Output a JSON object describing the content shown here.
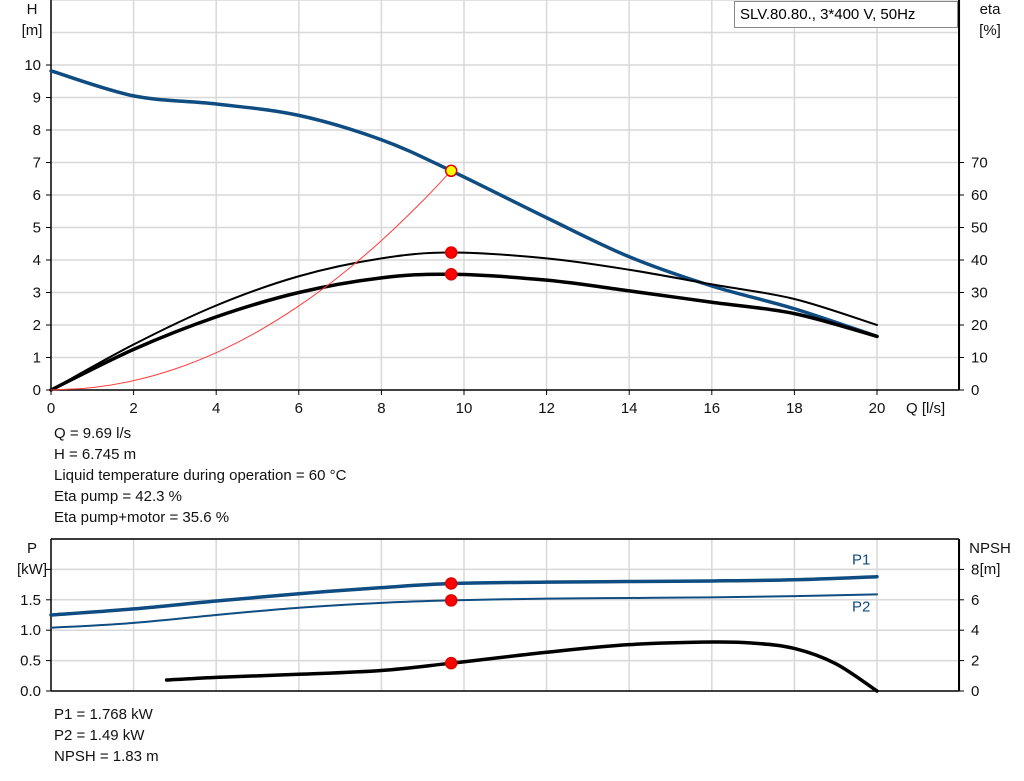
{
  "chart_data": [
    {
      "type": "line",
      "title_box": "SLV.80.80., 3*400 V, 50Hz",
      "xlabel": "Q [l/s]",
      "ylabel_left": [
        "H",
        "[m]"
      ],
      "ylabel_right": [
        "eta",
        "[%]"
      ],
      "xlim": [
        0,
        22
      ],
      "ylim_left": [
        0,
        12
      ],
      "ylim_right": [
        0,
        120
      ],
      "x_ticks": [
        0,
        2,
        4,
        6,
        8,
        10,
        12,
        14,
        16,
        18,
        20
      ],
      "y_ticks_left": [
        0,
        1,
        2,
        3,
        4,
        5,
        6,
        7,
        8,
        9,
        10
      ],
      "y_ticks_right": [
        0,
        10,
        20,
        30,
        40,
        50,
        60,
        70
      ],
      "grid": true,
      "series": [
        {
          "axis": "left",
          "color": "#0f4c81",
          "width": 3.5,
          "x": [
            0,
            2,
            4,
            6,
            8,
            9.69,
            12,
            14,
            16,
            18,
            20
          ],
          "y": [
            9.82,
            9.05,
            8.8,
            8.45,
            7.7,
            6.745,
            5.3,
            4.1,
            3.2,
            2.5,
            1.65
          ]
        },
        {
          "axis": "right",
          "color": "#000000",
          "width": 2,
          "x": [
            0,
            2,
            4,
            6,
            8,
            9.69,
            12,
            14,
            16,
            18,
            20
          ],
          "y": [
            0,
            14,
            26,
            35,
            40.5,
            42.3,
            40.5,
            37,
            32.5,
            28,
            20
          ]
        },
        {
          "axis": "right",
          "color": "#000000",
          "width": 3.5,
          "x": [
            0,
            2,
            4,
            6,
            8,
            9.69,
            12,
            14,
            16,
            18,
            20
          ],
          "y": [
            0,
            12.5,
            22.5,
            30,
            34.5,
            35.6,
            33.8,
            30.5,
            27,
            23.5,
            16.5
          ]
        },
        {
          "axis": "left",
          "color": "#ff3b3b",
          "width": 1,
          "x": [
            0,
            1,
            2,
            3,
            4,
            5,
            6,
            7,
            8,
            9,
            9.69
          ],
          "y": [
            0,
            0.072,
            0.287,
            0.646,
            1.149,
            1.796,
            2.586,
            3.52,
            4.597,
            5.818,
            6.745
          ]
        }
      ],
      "points": [
        {
          "axis": "left",
          "x": 9.69,
          "y": 6.745,
          "fill": "#ffff00",
          "stroke": "#e00000"
        },
        {
          "axis": "right",
          "x": 9.69,
          "y": 42.3,
          "fill": "#ff0000",
          "stroke": "#e00000"
        },
        {
          "axis": "right",
          "x": 9.69,
          "y": 35.6,
          "fill": "#ff0000",
          "stroke": "#e00000"
        }
      ]
    },
    {
      "type": "line",
      "ylabel_left": [
        "P",
        "[kW]"
      ],
      "ylabel_right": [
        "NPSH",
        "[m]"
      ],
      "xlim": [
        0,
        22
      ],
      "ylim_left": [
        0,
        2.5
      ],
      "ylim_right": [
        0,
        10
      ],
      "y_ticks_left": [
        "0.0",
        "0.5",
        "1.0",
        "1.5"
      ],
      "y_ticks_left_marks": [
        0,
        0.5,
        1,
        1.5,
        2
      ],
      "y_ticks_right": [
        0,
        2,
        4,
        6,
        8
      ],
      "grid": true,
      "series": [
        {
          "name": "P1",
          "axis": "left",
          "color": "#0f4c81",
          "width": 3.5,
          "x": [
            0,
            2,
            4,
            6,
            8,
            9.69,
            12,
            14,
            16,
            18,
            20
          ],
          "y": [
            1.25,
            1.35,
            1.48,
            1.6,
            1.7,
            1.768,
            1.79,
            1.8,
            1.81,
            1.83,
            1.88
          ]
        },
        {
          "name": "P2",
          "axis": "left",
          "color": "#0f4c81",
          "width": 2,
          "x": [
            0,
            2,
            4,
            6,
            8,
            9.69,
            12,
            14,
            16,
            18,
            20
          ],
          "y": [
            1.04,
            1.12,
            1.25,
            1.37,
            1.45,
            1.49,
            1.52,
            1.53,
            1.54,
            1.56,
            1.59
          ]
        },
        {
          "axis": "right",
          "color": "#000000",
          "width": 3.5,
          "x": [
            2.8,
            4,
            6,
            8,
            9.69,
            12,
            14,
            16,
            17,
            18,
            19,
            20
          ],
          "y": [
            0.72,
            0.9,
            1.1,
            1.35,
            1.83,
            2.55,
            3.05,
            3.22,
            3.15,
            2.8,
            1.8,
            0
          ]
        }
      ],
      "points": [
        {
          "axis": "left",
          "x": 9.69,
          "y": 1.768,
          "fill": "#ff0000",
          "stroke": "#e00000"
        },
        {
          "axis": "left",
          "x": 9.69,
          "y": 1.49,
          "fill": "#ff0000",
          "stroke": "#e00000"
        },
        {
          "axis": "right",
          "x": 9.69,
          "y": 1.83,
          "fill": "#ff0000",
          "stroke": "#e00000"
        }
      ]
    }
  ],
  "info_top": [
    "Q = 9.69 l/s",
    "H = 6.745 m",
    "Liquid temperature during operation = 60 °C",
    "Eta pump = 42.3 %",
    "Eta pump+motor = 35.6 %"
  ],
  "info_bottom": [
    "P1 = 1.768 kW",
    "P2 = 1.49 kW",
    "NPSH = 1.83 m"
  ]
}
